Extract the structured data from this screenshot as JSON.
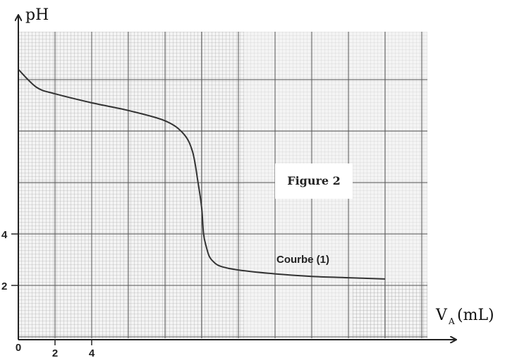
{
  "chart_data": {
    "type": "line",
    "title": "Figure 2",
    "xlabel": "V",
    "xlabel_sub": "A",
    "xlabel_unit": "(mL)",
    "ylabel": "pH",
    "x_ticks": [
      "0",
      "2",
      "4"
    ],
    "y_ticks": [
      "2",
      "4"
    ],
    "xlim": [
      0,
      22
    ],
    "ylim": [
      0,
      12
    ],
    "grid": true,
    "series": [
      {
        "name": "Courbe (1)",
        "x": [
          0,
          1,
          2,
          4,
          6,
          8,
          9,
          9.5,
          9.8,
          10,
          10.1,
          10.25,
          10.4,
          10.6,
          11,
          12,
          14,
          16,
          18,
          20
        ],
        "y": [
          10.4,
          9.7,
          9.45,
          9.1,
          8.8,
          8.4,
          7.9,
          7.2,
          6.0,
          5.0,
          4.0,
          3.5,
          3.15,
          2.95,
          2.75,
          2.6,
          2.45,
          2.35,
          2.3,
          2.25
        ]
      }
    ]
  }
}
